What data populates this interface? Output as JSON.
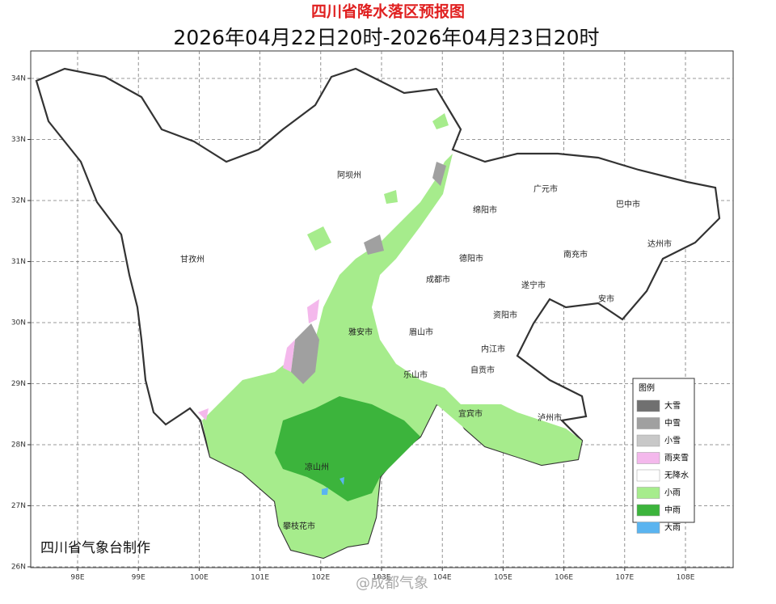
{
  "header": {
    "title": "四川省降水落区预报图",
    "subtitle": "2026年04月22日20时-2026年04月23日20时"
  },
  "map": {
    "xticks": [
      {
        "value": 98,
        "label": "98E"
      },
      {
        "value": 99,
        "label": "99E"
      },
      {
        "value": 100,
        "label": "100E"
      },
      {
        "value": 101,
        "label": "101E"
      },
      {
        "value": 102,
        "label": "102E"
      },
      {
        "value": 103,
        "label": "103E"
      },
      {
        "value": 104,
        "label": "104E"
      },
      {
        "value": 105,
        "label": "105E"
      },
      {
        "value": 106,
        "label": "106E"
      },
      {
        "value": 107,
        "label": "107E"
      },
      {
        "value": 108,
        "label": "108E"
      }
    ],
    "yticks": [
      {
        "value": 26,
        "label": "26N"
      },
      {
        "value": 27,
        "label": "27N"
      },
      {
        "value": 28,
        "label": "28N"
      },
      {
        "value": 29,
        "label": "29N"
      },
      {
        "value": 30,
        "label": "30N"
      },
      {
        "value": 31,
        "label": "31N"
      },
      {
        "value": 32,
        "label": "32N"
      },
      {
        "value": 33,
        "label": "33N"
      },
      {
        "value": 34,
        "label": "34N"
      }
    ],
    "cities": [
      "阿坝州",
      "广元市",
      "巴中市",
      "绵阳市",
      "甘孜州",
      "德阳市",
      "南充市",
      "达州市",
      "成都市",
      "遂宁市",
      "安市",
      "资阳市",
      "雅安市",
      "眉山市",
      "内江市",
      "自贡市",
      "乐山市",
      "宜宾市",
      "泸州市",
      "凉山州",
      "攀枝花市"
    ]
  },
  "legend": {
    "title": "图例",
    "items": [
      {
        "label": "大雪",
        "color": "#707070"
      },
      {
        "label": "中雪",
        "color": "#a0a0a0"
      },
      {
        "label": "小雪",
        "color": "#c8c8c8"
      },
      {
        "label": "雨夹雪",
        "color": "#f4b8ec"
      },
      {
        "label": "无降水",
        "color": "#ffffff"
      },
      {
        "label": "小雨",
        "color": "#a6ec8c"
      },
      {
        "label": "中雨",
        "color": "#3cb43c"
      },
      {
        "label": "大雨",
        "color": "#5ab4f0"
      }
    ]
  },
  "credit": "四川省气象台制作",
  "watermark": "@成都气象"
}
